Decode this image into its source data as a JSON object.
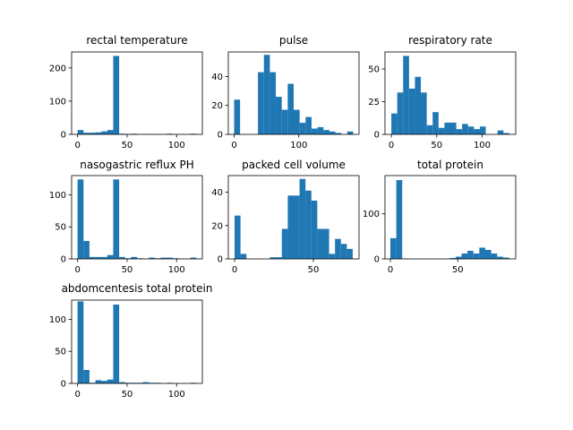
{
  "chart_data": [
    {
      "type": "bar",
      "title": "rectal temperature",
      "bar_color": "#1f77b4",
      "xlim": [
        -6,
        126
      ],
      "ylim": [
        0,
        248
      ],
      "xticks": [
        0,
        50,
        100
      ],
      "yticks": [
        0,
        100,
        200
      ],
      "bins": [
        {
          "x0": 0,
          "x1": 6,
          "count": 13
        },
        {
          "x0": 6,
          "x1": 12,
          "count": 5
        },
        {
          "x0": 12,
          "x1": 18,
          "count": 5
        },
        {
          "x0": 18,
          "x1": 24,
          "count": 6
        },
        {
          "x0": 24,
          "x1": 30,
          "count": 9
        },
        {
          "x0": 30,
          "x1": 36,
          "count": 13
        },
        {
          "x0": 36,
          "x1": 42,
          "count": 236
        },
        {
          "x0": 42,
          "x1": 48,
          "count": 2
        },
        {
          "x0": 48,
          "x1": 54,
          "count": 1
        },
        {
          "x0": 54,
          "x1": 60,
          "count": 2
        },
        {
          "x0": 60,
          "x1": 66,
          "count": 0
        },
        {
          "x0": 66,
          "x1": 72,
          "count": 1
        },
        {
          "x0": 72,
          "x1": 78,
          "count": 1
        },
        {
          "x0": 78,
          "x1": 84,
          "count": 0
        },
        {
          "x0": 84,
          "x1": 90,
          "count": 0
        },
        {
          "x0": 90,
          "x1": 96,
          "count": 2
        },
        {
          "x0": 96,
          "x1": 102,
          "count": 0
        },
        {
          "x0": 102,
          "x1": 108,
          "count": 0
        },
        {
          "x0": 108,
          "x1": 114,
          "count": 0
        },
        {
          "x0": 114,
          "x1": 120,
          "count": 2
        }
      ]
    },
    {
      "type": "bar",
      "title": "pulse",
      "bar_color": "#1f77b4",
      "xlim": [
        -9,
        193
      ],
      "ylim": [
        0,
        57
      ],
      "xticks": [
        0,
        100
      ],
      "yticks": [
        0,
        20,
        40
      ],
      "bins": [
        {
          "x0": 0,
          "x1": 9.2,
          "count": 24
        },
        {
          "x0": 9.2,
          "x1": 18.4,
          "count": 0
        },
        {
          "x0": 18.4,
          "x1": 27.6,
          "count": 0
        },
        {
          "x0": 27.6,
          "x1": 36.8,
          "count": 0
        },
        {
          "x0": 36.8,
          "x1": 46,
          "count": 43
        },
        {
          "x0": 46,
          "x1": 55.2,
          "count": 55
        },
        {
          "x0": 55.2,
          "x1": 64.4,
          "count": 43
        },
        {
          "x0": 64.4,
          "x1": 73.6,
          "count": 26
        },
        {
          "x0": 73.6,
          "x1": 82.8,
          "count": 17
        },
        {
          "x0": 82.8,
          "x1": 92,
          "count": 35
        },
        {
          "x0": 92,
          "x1": 101.2,
          "count": 17
        },
        {
          "x0": 101.2,
          "x1": 110.4,
          "count": 8
        },
        {
          "x0": 110.4,
          "x1": 119.6,
          "count": 12
        },
        {
          "x0": 119.6,
          "x1": 128.8,
          "count": 4
        },
        {
          "x0": 128.8,
          "x1": 138,
          "count": 5
        },
        {
          "x0": 138,
          "x1": 147.2,
          "count": 3
        },
        {
          "x0": 147.2,
          "x1": 156.4,
          "count": 2
        },
        {
          "x0": 156.4,
          "x1": 165.6,
          "count": 1
        },
        {
          "x0": 165.6,
          "x1": 174.8,
          "count": 0
        },
        {
          "x0": 174.8,
          "x1": 184,
          "count": 2
        }
      ]
    },
    {
      "type": "bar",
      "title": "respiratory rate",
      "bar_color": "#1f77b4",
      "xlim": [
        -7,
        137
      ],
      "ylim": [
        0,
        63
      ],
      "xticks": [
        0,
        50,
        100
      ],
      "yticks": [
        0,
        25,
        50
      ],
      "bins": [
        {
          "x0": 0,
          "x1": 6.5,
          "count": 16
        },
        {
          "x0": 6.5,
          "x1": 13,
          "count": 32
        },
        {
          "x0": 13,
          "x1": 19.5,
          "count": 60
        },
        {
          "x0": 19.5,
          "x1": 26,
          "count": 35
        },
        {
          "x0": 26,
          "x1": 32.5,
          "count": 44
        },
        {
          "x0": 32.5,
          "x1": 39,
          "count": 32
        },
        {
          "x0": 39,
          "x1": 45.5,
          "count": 7
        },
        {
          "x0": 45.5,
          "x1": 52,
          "count": 17
        },
        {
          "x0": 52,
          "x1": 58.5,
          "count": 5
        },
        {
          "x0": 58.5,
          "x1": 65,
          "count": 9
        },
        {
          "x0": 65,
          "x1": 71.5,
          "count": 9
        },
        {
          "x0": 71.5,
          "x1": 78,
          "count": 4
        },
        {
          "x0": 78,
          "x1": 84.5,
          "count": 8
        },
        {
          "x0": 84.5,
          "x1": 91,
          "count": 6
        },
        {
          "x0": 91,
          "x1": 97.5,
          "count": 4
        },
        {
          "x0": 97.5,
          "x1": 104,
          "count": 6
        },
        {
          "x0": 104,
          "x1": 110.5,
          "count": 0
        },
        {
          "x0": 110.5,
          "x1": 117,
          "count": 0
        },
        {
          "x0": 117,
          "x1": 123.5,
          "count": 3
        },
        {
          "x0": 123.5,
          "x1": 130,
          "count": 1
        }
      ]
    },
    {
      "type": "bar",
      "title": "nasogastric reflux PH",
      "bar_color": "#1f77b4",
      "xlim": [
        -6,
        126
      ],
      "ylim": [
        0,
        130
      ],
      "xticks": [
        0,
        50,
        100
      ],
      "yticks": [
        0,
        50,
        100
      ],
      "bins": [
        {
          "x0": 0,
          "x1": 6,
          "count": 124
        },
        {
          "x0": 6,
          "x1": 12,
          "count": 28
        },
        {
          "x0": 12,
          "x1": 18,
          "count": 3
        },
        {
          "x0": 18,
          "x1": 24,
          "count": 3
        },
        {
          "x0": 24,
          "x1": 30,
          "count": 3
        },
        {
          "x0": 30,
          "x1": 36,
          "count": 6
        },
        {
          "x0": 36,
          "x1": 42,
          "count": 124
        },
        {
          "x0": 42,
          "x1": 48,
          "count": 3
        },
        {
          "x0": 48,
          "x1": 54,
          "count": 1
        },
        {
          "x0": 54,
          "x1": 60,
          "count": 3
        },
        {
          "x0": 60,
          "x1": 66,
          "count": 1
        },
        {
          "x0": 66,
          "x1": 72,
          "count": 0
        },
        {
          "x0": 72,
          "x1": 78,
          "count": 2
        },
        {
          "x0": 78,
          "x1": 84,
          "count": 1
        },
        {
          "x0": 84,
          "x1": 90,
          "count": 2
        },
        {
          "x0": 90,
          "x1": 96,
          "count": 2
        },
        {
          "x0": 96,
          "x1": 102,
          "count": 1
        },
        {
          "x0": 102,
          "x1": 108,
          "count": 0
        },
        {
          "x0": 108,
          "x1": 114,
          "count": 0
        },
        {
          "x0": 114,
          "x1": 120,
          "count": 2
        }
      ]
    },
    {
      "type": "bar",
      "title": "packed cell volume",
      "bar_color": "#1f77b4",
      "xlim": [
        -4,
        79
      ],
      "ylim": [
        0,
        50
      ],
      "xticks": [
        0,
        50
      ],
      "yticks": [
        0,
        20,
        40
      ],
      "bins": [
        {
          "x0": 0,
          "x1": 3.75,
          "count": 26
        },
        {
          "x0": 3.75,
          "x1": 7.5,
          "count": 3
        },
        {
          "x0": 7.5,
          "x1": 11.25,
          "count": 0
        },
        {
          "x0": 11.25,
          "x1": 15,
          "count": 0
        },
        {
          "x0": 15,
          "x1": 18.75,
          "count": 0
        },
        {
          "x0": 18.75,
          "x1": 22.5,
          "count": 0
        },
        {
          "x0": 22.5,
          "x1": 26.25,
          "count": 1
        },
        {
          "x0": 26.25,
          "x1": 30,
          "count": 1
        },
        {
          "x0": 30,
          "x1": 33.75,
          "count": 18
        },
        {
          "x0": 33.75,
          "x1": 37.5,
          "count": 38
        },
        {
          "x0": 37.5,
          "x1": 41.25,
          "count": 38
        },
        {
          "x0": 41.25,
          "x1": 45,
          "count": 48
        },
        {
          "x0": 45,
          "x1": 48.75,
          "count": 41
        },
        {
          "x0": 48.75,
          "x1": 52.5,
          "count": 35
        },
        {
          "x0": 52.5,
          "x1": 56.25,
          "count": 18
        },
        {
          "x0": 56.25,
          "x1": 60,
          "count": 18
        },
        {
          "x0": 60,
          "x1": 63.75,
          "count": 3
        },
        {
          "x0": 63.75,
          "x1": 67.5,
          "count": 12
        },
        {
          "x0": 67.5,
          "x1": 71.25,
          "count": 9
        },
        {
          "x0": 71.25,
          "x1": 75,
          "count": 6
        }
      ]
    },
    {
      "type": "bar",
      "title": "total protein",
      "bar_color": "#1f77b4",
      "xlim": [
        -4,
        93
      ],
      "ylim": [
        0,
        185
      ],
      "xticks": [
        0,
        50
      ],
      "yticks": [
        0,
        100
      ],
      "bins": [
        {
          "x0": 0,
          "x1": 4.4,
          "count": 46
        },
        {
          "x0": 4.4,
          "x1": 8.8,
          "count": 175
        },
        {
          "x0": 8.8,
          "x1": 13.2,
          "count": 0
        },
        {
          "x0": 13.2,
          "x1": 17.6,
          "count": 0
        },
        {
          "x0": 17.6,
          "x1": 22,
          "count": 0
        },
        {
          "x0": 22,
          "x1": 26.4,
          "count": 0
        },
        {
          "x0": 26.4,
          "x1": 30.8,
          "count": 0
        },
        {
          "x0": 30.8,
          "x1": 35.2,
          "count": 0
        },
        {
          "x0": 35.2,
          "x1": 39.6,
          "count": 0
        },
        {
          "x0": 39.6,
          "x1": 44,
          "count": 0
        },
        {
          "x0": 44,
          "x1": 48.4,
          "count": 2
        },
        {
          "x0": 48.4,
          "x1": 52.8,
          "count": 5
        },
        {
          "x0": 52.8,
          "x1": 57.2,
          "count": 12
        },
        {
          "x0": 57.2,
          "x1": 61.6,
          "count": 18
        },
        {
          "x0": 61.6,
          "x1": 66,
          "count": 12
        },
        {
          "x0": 66,
          "x1": 70.4,
          "count": 25
        },
        {
          "x0": 70.4,
          "x1": 74.8,
          "count": 20
        },
        {
          "x0": 74.8,
          "x1": 79.2,
          "count": 12
        },
        {
          "x0": 79.2,
          "x1": 83.6,
          "count": 5
        },
        {
          "x0": 83.6,
          "x1": 88,
          "count": 3
        }
      ]
    },
    {
      "type": "bar",
      "title": "abdomcentesis total protein",
      "bar_color": "#1f77b4",
      "xlim": [
        -6,
        126
      ],
      "ylim": [
        0,
        130
      ],
      "xticks": [
        0,
        50,
        100
      ],
      "yticks": [
        0,
        50,
        100
      ],
      "bins": [
        {
          "x0": 0,
          "x1": 6,
          "count": 128
        },
        {
          "x0": 6,
          "x1": 12,
          "count": 21
        },
        {
          "x0": 12,
          "x1": 18,
          "count": 1
        },
        {
          "x0": 18,
          "x1": 24,
          "count": 5
        },
        {
          "x0": 24,
          "x1": 30,
          "count": 4
        },
        {
          "x0": 30,
          "x1": 36,
          "count": 6
        },
        {
          "x0": 36,
          "x1": 42,
          "count": 123
        },
        {
          "x0": 42,
          "x1": 48,
          "count": 2
        },
        {
          "x0": 48,
          "x1": 54,
          "count": 1
        },
        {
          "x0": 54,
          "x1": 60,
          "count": 1
        },
        {
          "x0": 60,
          "x1": 66,
          "count": 1
        },
        {
          "x0": 66,
          "x1": 72,
          "count": 2
        },
        {
          "x0": 72,
          "x1": 78,
          "count": 1
        },
        {
          "x0": 78,
          "x1": 84,
          "count": 1
        },
        {
          "x0": 84,
          "x1": 90,
          "count": 0
        },
        {
          "x0": 90,
          "x1": 96,
          "count": 1
        },
        {
          "x0": 96,
          "x1": 102,
          "count": 0
        },
        {
          "x0": 102,
          "x1": 108,
          "count": 0
        },
        {
          "x0": 108,
          "x1": 114,
          "count": 0
        },
        {
          "x0": 114,
          "x1": 120,
          "count": 1
        }
      ]
    }
  ]
}
